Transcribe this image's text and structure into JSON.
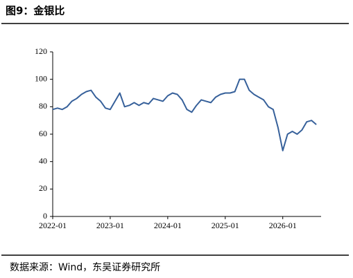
{
  "chart_data": {
    "type": "line",
    "title": "图9：金银比",
    "source": "数据来源：Wind，东吴证券研究所",
    "x": [
      "2022-01",
      "2022-02",
      "2022-03",
      "2022-04",
      "2022-05",
      "2022-06",
      "2022-07",
      "2022-08",
      "2022-09",
      "2022-10",
      "2022-11",
      "2022-12",
      "2023-01",
      "2023-02",
      "2023-03",
      "2023-04",
      "2023-05",
      "2023-06",
      "2023-07",
      "2023-08",
      "2023-09",
      "2023-10",
      "2023-11",
      "2023-12",
      "2024-01",
      "2024-02",
      "2024-03",
      "2024-04",
      "2024-05",
      "2024-06",
      "2024-07",
      "2024-08",
      "2024-09",
      "2024-10",
      "2024-11",
      "2024-12",
      "2025-01",
      "2025-02",
      "2025-03",
      "2025-04",
      "2025-05",
      "2025-06",
      "2025-07",
      "2025-08",
      "2025-09",
      "2025-10",
      "2025-11",
      "2025-12",
      "2026-01",
      "2026-02",
      "2026-03",
      "2026-04",
      "2026-05",
      "2026-06",
      "2026-07",
      "2026-08"
    ],
    "series": [
      {
        "color": "#36609a",
        "values": [
          78,
          79,
          78,
          80,
          84,
          86,
          89,
          91,
          92,
          87,
          84,
          79,
          78,
          84,
          90,
          80,
          81,
          83,
          81,
          83,
          82,
          86,
          85,
          84,
          88,
          90,
          89,
          85,
          78,
          76,
          81,
          85,
          84,
          83,
          87,
          89,
          90,
          90,
          91,
          100,
          100,
          92,
          89,
          87,
          85,
          80,
          78,
          65,
          48,
          60,
          62,
          60,
          63,
          69,
          70,
          67
        ]
      }
    ],
    "xlim": [
      "2022-01",
      "2026-09"
    ],
    "xticks": [
      "2022-01",
      "2023-01",
      "2024-01",
      "2025-01",
      "2026-01"
    ],
    "ylim": [
      0,
      120
    ],
    "yticks": [
      0,
      20,
      40,
      60,
      80,
      100,
      120
    ],
    "grid": false
  }
}
